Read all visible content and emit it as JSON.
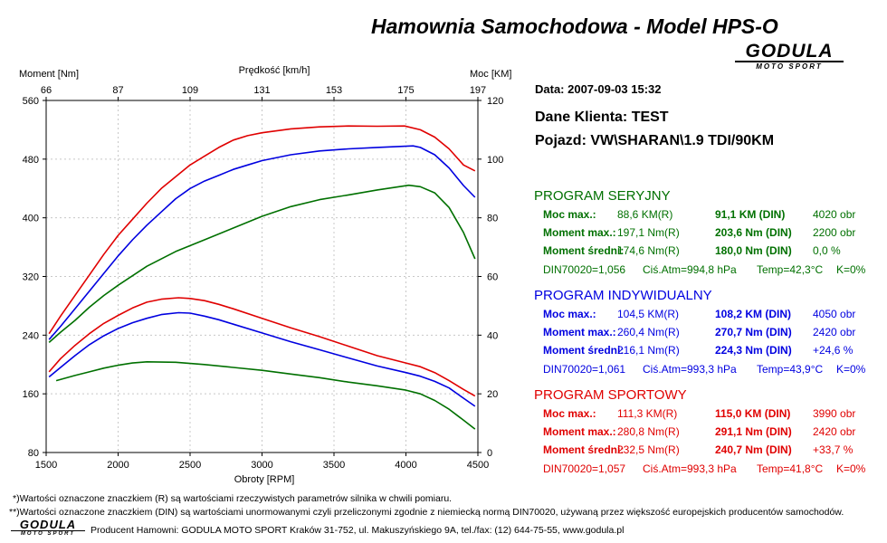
{
  "header": {
    "title": "Hamownia Samochodowa   -   Model HPS-O",
    "logo_text": "GODULA",
    "logo_sub": "MOTO SPORT"
  },
  "info": {
    "date": "Data: 2007-09-03  15:32",
    "client": "Dane Klienta: TEST",
    "vehicle": "Pojazd: VW\\SHARAN\\1.9 TDI/90KM"
  },
  "programs": [
    {
      "title": "PROGRAM SERYJNY",
      "color": "#007000",
      "rows": [
        {
          "label": "Moc max.:",
          "r": "88,6 KM(R)",
          "din": "91,1 KM (DIN)",
          "extra": "4020 obr"
        },
        {
          "label": "Moment max.:",
          "r": "197,1 Nm(R)",
          "din": "203,6 Nm (DIN)",
          "extra": "2200 obr"
        },
        {
          "label": "Moment średni:",
          "r": "174,6 Nm(R)",
          "din": "180,0 Nm (DIN)",
          "extra": "0,0 %"
        }
      ],
      "din_line": {
        "din": "DIN70020=1,056",
        "atm": "Ciś.Atm=994,8 hPa",
        "temp": "Temp=42,3°C",
        "k": "K=0%"
      }
    },
    {
      "title": "PROGRAM INDYWIDUALNY",
      "color": "#0000e0",
      "rows": [
        {
          "label": "Moc max.:",
          "r": "104,5 KM(R)",
          "din": "108,2 KM (DIN)",
          "extra": "4050 obr"
        },
        {
          "label": "Moment max.:",
          "r": "260,4 Nm(R)",
          "din": "270,7 Nm (DIN)",
          "extra": "2420 obr"
        },
        {
          "label": "Moment średni:",
          "r": "216,1 Nm(R)",
          "din": "224,3 Nm (DIN)",
          "extra": "+24,6 %"
        }
      ],
      "din_line": {
        "din": "DIN70020=1,061",
        "atm": "Ciś.Atm=993,3 hPa",
        "temp": "Temp=43,9°C",
        "k": "K=0%"
      }
    },
    {
      "title": "PROGRAM SPORTOWY",
      "color": "#e00000",
      "rows": [
        {
          "label": "Moc max.:",
          "r": "111,3 KM(R)",
          "din": "115,0 KM (DIN)",
          "extra": "3990 obr"
        },
        {
          "label": "Moment max.:",
          "r": "280,8 Nm(R)",
          "din": "291,1 Nm (DIN)",
          "extra": "2420 obr"
        },
        {
          "label": "Moment średni:",
          "r": "232,5 Nm(R)",
          "din": "240,7 Nm (DIN)",
          "extra": "+33,7 %"
        }
      ],
      "din_line": {
        "din": "DIN70020=1,057",
        "atm": "Ciś.Atm=993,3 hPa",
        "temp": "Temp=41,8°C",
        "k": "K=0%"
      }
    }
  ],
  "footer": {
    "note1": "*)Wartości oznaczone znaczkiem (R) są wartościami rzeczywistych parametrów silnika w chwili pomiaru.",
    "note2": "**)Wartości oznaczone znaczkiem (DIN) są wartościami unormowanymi czyli przeliczonymi zgodnie z niemiecką normą DIN70020, używaną przez większość europejskich producentów samochodów.",
    "producer": "Producent Hamowni: GODULA MOTO SPORT Kraków 31-752, ul. Makuszyńskiego 9A, tel./fax: (12) 644-75-55, www.godula.pl"
  },
  "chart_data": {
    "type": "line",
    "xlabel": "Obroty [RPM]",
    "ylabel_left": "Moment [Nm]",
    "ylabel_right": "Moc [KM]",
    "xlabel_top": "Prędkość [km/h]",
    "xlim": [
      1500,
      4500
    ],
    "ylim_left": [
      80,
      560
    ],
    "ylim_right": [
      0,
      120
    ],
    "x_ticks": [
      "1500",
      "2000",
      "2500",
      "3000",
      "3500",
      "4000",
      "4500"
    ],
    "y_left_ticks": [
      "80",
      "160",
      "240",
      "320",
      "400",
      "480",
      "560"
    ],
    "y_right_ticks": [
      "0",
      "20",
      "40",
      "60",
      "80",
      "100",
      "120"
    ],
    "speed_ticks": [
      "66",
      "87",
      "109",
      "131",
      "153",
      "175",
      "197"
    ],
    "grid": true,
    "series": [
      {
        "axis": "right",
        "color": "#e00000",
        "x": [
          1520,
          1600,
          1700,
          1800,
          1900,
          2000,
          2100,
          2200,
          2300,
          2400,
          2500,
          2600,
          2700,
          2800,
          2900,
          3000,
          3200,
          3400,
          3600,
          3800,
          3990,
          4100,
          4200,
          4300,
          4400,
          4480
        ],
        "y": [
          40.5,
          46.5,
          53.5,
          60.5,
          67.5,
          74,
          79.5,
          85,
          90,
          94,
          98,
          101,
          104,
          106.5,
          108,
          109,
          110.3,
          111,
          111.3,
          111.2,
          111.3,
          110,
          107.5,
          103.5,
          98,
          96
        ]
      },
      {
        "axis": "right",
        "color": "#0000e0",
        "x": [
          1520,
          1600,
          1700,
          1800,
          1900,
          2000,
          2100,
          2200,
          2300,
          2400,
          2500,
          2600,
          2700,
          2800,
          2900,
          3000,
          3200,
          3400,
          3600,
          3800,
          4050,
          4100,
          4200,
          4300,
          4400,
          4480
        ],
        "y": [
          38.5,
          43,
          49,
          55,
          61,
          67,
          72.5,
          77.5,
          82,
          86.5,
          90,
          92.5,
          94.5,
          96.5,
          98,
          99.5,
          101.5,
          102.8,
          103.5,
          104,
          104.5,
          104,
          101.5,
          97,
          91,
          87
        ]
      },
      {
        "axis": "right",
        "color": "#007000",
        "x": [
          1520,
          1600,
          1700,
          1800,
          1900,
          2000,
          2200,
          2400,
          2600,
          2800,
          3000,
          3200,
          3400,
          3600,
          3800,
          4020,
          4100,
          4200,
          4300,
          4400,
          4480
        ],
        "y": [
          37.5,
          41,
          45,
          49.5,
          53.5,
          57,
          63.5,
          68.5,
          72.5,
          76.5,
          80.5,
          83.8,
          86.2,
          87.8,
          89.5,
          91.1,
          90.6,
          88.5,
          83.5,
          75,
          66
        ]
      },
      {
        "axis": "left",
        "color": "#e00000",
        "x": [
          1520,
          1600,
          1700,
          1800,
          1900,
          2000,
          2100,
          2200,
          2300,
          2420,
          2500,
          2600,
          2700,
          2800,
          3000,
          3200,
          3400,
          3600,
          3800,
          4000,
          4100,
          4200,
          4300,
          4400,
          4480
        ],
        "y": [
          190,
          208,
          226,
          242,
          256,
          267,
          277,
          285,
          289,
          291,
          290,
          287,
          282,
          276,
          263,
          250,
          238,
          225,
          212,
          202,
          197,
          189,
          178,
          166,
          157
        ]
      },
      {
        "axis": "left",
        "color": "#0000e0",
        "x": [
          1520,
          1600,
          1700,
          1800,
          1900,
          2000,
          2100,
          2200,
          2300,
          2420,
          2500,
          2600,
          2700,
          2800,
          3000,
          3200,
          3400,
          3600,
          3800,
          4000,
          4100,
          4200,
          4300,
          4400,
          4480
        ],
        "y": [
          183,
          196,
          212,
          227,
          239,
          249,
          257,
          263,
          268,
          270.7,
          270,
          266,
          261,
          255,
          243,
          231,
          220,
          209,
          198,
          189,
          184,
          177,
          168,
          154,
          143
        ]
      },
      {
        "axis": "left",
        "color": "#007000",
        "x": [
          1570,
          1700,
          1800,
          1900,
          2000,
          2100,
          2200,
          2400,
          2600,
          2800,
          3000,
          3200,
          3400,
          3600,
          3800,
          4000,
          4100,
          4200,
          4300,
          4400,
          4480
        ],
        "y": [
          178,
          185,
          190,
          195,
          199,
          202,
          203.6,
          203,
          200,
          196,
          192,
          187,
          182,
          176,
          171,
          165,
          160,
          151,
          139,
          124,
          112
        ]
      }
    ]
  }
}
